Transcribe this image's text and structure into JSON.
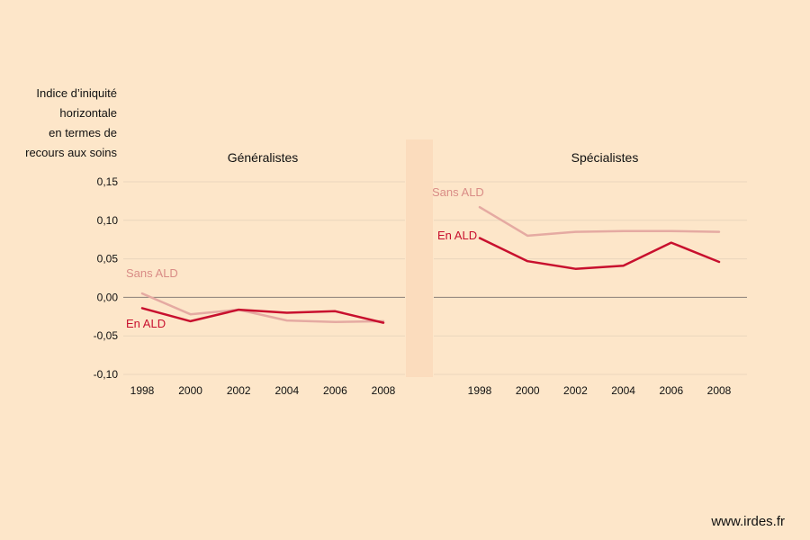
{
  "footer": {
    "source": "www.irdes.fr"
  },
  "ylabel_lines": [
    "Indice d’iniquité",
    "horizontale",
    "en termes de",
    "recours aux soins"
  ],
  "colors": {
    "background": "#fde6c9",
    "en_ald": "#c8102e",
    "sans_ald": "#e5aaa2",
    "grid": "#ead6bd",
    "zero_line": "#8a7f77"
  },
  "chart_data": [
    {
      "type": "line",
      "title": "Généralistes",
      "x": [
        1998,
        2000,
        2002,
        2004,
        2006,
        2008
      ],
      "ylim": [
        -0.1,
        0.15
      ],
      "yticks": [
        "0,15",
        "0,10",
        "0,05",
        "0,00",
        "-0,05",
        "-0,10"
      ],
      "ytick_values": [
        0.15,
        0.1,
        0.05,
        0.0,
        -0.05,
        -0.1
      ],
      "grid": true,
      "series": [
        {
          "name": "Sans ALD",
          "values": [
            0.005,
            -0.022,
            -0.016,
            -0.03,
            -0.032,
            -0.031
          ]
        },
        {
          "name": "En ALD",
          "values": [
            -0.014,
            -0.031,
            -0.016,
            -0.02,
            -0.018,
            -0.033
          ]
        }
      ]
    },
    {
      "type": "line",
      "title": "Spécialistes",
      "x": [
        1998,
        2000,
        2002,
        2004,
        2006,
        2008
      ],
      "ylim": [
        -0.1,
        0.15
      ],
      "grid": true,
      "series": [
        {
          "name": "Sans ALD",
          "values": [
            0.117,
            0.08,
            0.085,
            0.086,
            0.086,
            0.085
          ]
        },
        {
          "name": "En ALD",
          "values": [
            0.077,
            0.047,
            0.037,
            0.041,
            0.071,
            0.046
          ]
        }
      ]
    }
  ]
}
